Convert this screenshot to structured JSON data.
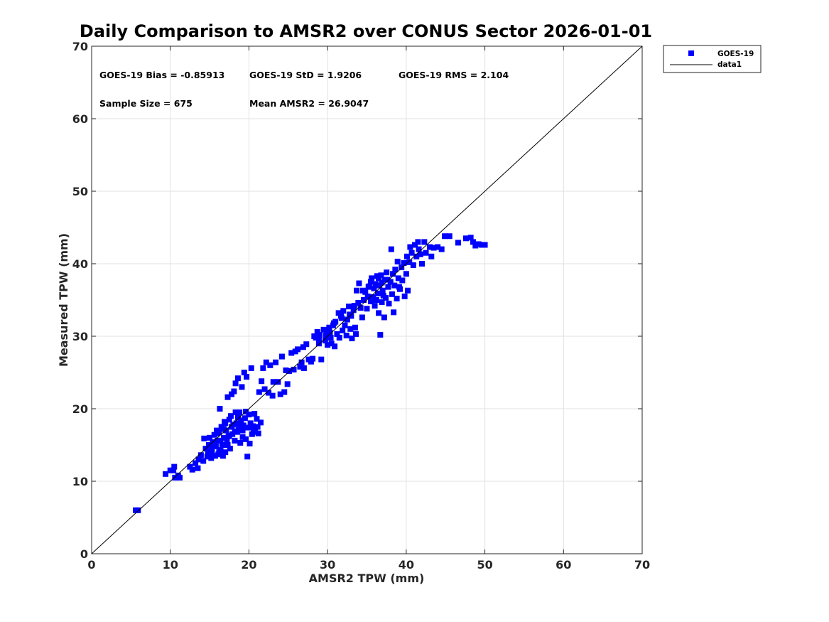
{
  "chart_data": {
    "type": "scatter",
    "title": "Daily Comparison to AMSR2 over CONUS Sector 2026-01-01",
    "xlabel": "AMSR2 TPW (mm)",
    "ylabel": "Measured TPW (mm)",
    "xlim": [
      0,
      70
    ],
    "ylim": [
      0,
      70
    ],
    "xticks": [
      "0",
      "10",
      "20",
      "30",
      "40",
      "50",
      "60",
      "70"
    ],
    "yticks": [
      "0",
      "10",
      "20",
      "30",
      "40",
      "50",
      "60",
      "70"
    ],
    "grid": true,
    "legend_position": "outside-top-right",
    "stats": {
      "bias": "GOES-19 Bias = -0.85913",
      "std": "GOES-19 StD = 1.9206",
      "rms": "GOES-19 RMS = 2.104",
      "sample_size": "Sample Size = 675",
      "mean_amsr2": "Mean AMSR2 = 26.9047"
    },
    "series": [
      {
        "name": "GOES-19",
        "marker": "square",
        "color": "#0000ff",
        "points": [
          [
            5.6,
            6.0
          ],
          [
            5.9,
            6.0
          ],
          [
            9.4,
            11.0
          ],
          [
            10.0,
            11.5
          ],
          [
            10.5,
            12.0
          ],
          [
            10.4,
            11.5
          ],
          [
            10.6,
            10.5
          ],
          [
            11.2,
            10.5
          ],
          [
            11.0,
            10.8
          ],
          [
            12.5,
            12.0
          ],
          [
            12.8,
            11.6
          ],
          [
            13.2,
            12.5
          ],
          [
            13.5,
            11.8
          ],
          [
            13.6,
            13.0
          ],
          [
            13.9,
            13.6
          ],
          [
            14.2,
            12.8
          ],
          [
            14.3,
            15.9
          ],
          [
            14.5,
            14.5
          ],
          [
            14.7,
            13.4
          ],
          [
            14.9,
            15.0
          ],
          [
            15.0,
            16.0
          ],
          [
            15.2,
            13.2
          ],
          [
            15.3,
            14.2
          ],
          [
            15.4,
            15.4
          ],
          [
            15.6,
            16.4
          ],
          [
            15.7,
            13.5
          ],
          [
            15.8,
            14.8
          ],
          [
            15.9,
            17.0
          ],
          [
            16.0,
            15.6
          ],
          [
            16.1,
            13.7
          ],
          [
            16.2,
            16.8
          ],
          [
            16.3,
            20.0
          ],
          [
            16.4,
            14.3
          ],
          [
            16.5,
            17.5
          ],
          [
            16.6,
            15.0
          ],
          [
            16.7,
            13.5
          ],
          [
            16.8,
            16.0
          ],
          [
            16.9,
            18.2
          ],
          [
            17.0,
            14.0
          ],
          [
            17.1,
            17.0
          ],
          [
            17.2,
            15.5
          ],
          [
            17.3,
            21.6
          ],
          [
            17.4,
            16.2
          ],
          [
            17.5,
            18.5
          ],
          [
            17.6,
            14.5
          ],
          [
            17.7,
            19.0
          ],
          [
            17.8,
            22.0
          ],
          [
            17.9,
            16.5
          ],
          [
            18.0,
            17.8
          ],
          [
            18.1,
            22.4
          ],
          [
            18.2,
            15.6
          ],
          [
            18.3,
            23.5
          ],
          [
            18.3,
            19.5
          ],
          [
            18.4,
            18.0
          ],
          [
            18.5,
            16.8
          ],
          [
            18.6,
            24.2
          ],
          [
            18.7,
            17.2
          ],
          [
            18.8,
            19.5
          ],
          [
            18.9,
            15.3
          ],
          [
            19.0,
            18.4
          ],
          [
            19.1,
            23.0
          ],
          [
            19.2,
            16.1
          ],
          [
            19.3,
            17.7
          ],
          [
            19.4,
            25.0
          ],
          [
            19.5,
            18.7
          ],
          [
            19.6,
            15.8
          ],
          [
            19.7,
            24.4
          ],
          [
            19.8,
            13.4
          ],
          [
            19.9,
            17.4
          ],
          [
            20.0,
            19.2
          ],
          [
            20.1,
            15.2
          ],
          [
            20.2,
            18.0
          ],
          [
            20.3,
            25.6
          ],
          [
            20.4,
            16.5
          ],
          [
            20.5,
            17.6
          ],
          [
            20.7,
            19.3
          ],
          [
            20.8,
            16.8
          ],
          [
            21.0,
            18.6
          ],
          [
            21.1,
            17.5
          ],
          [
            21.2,
            16.6
          ],
          [
            21.3,
            22.3
          ],
          [
            21.5,
            18.1
          ],
          [
            21.6,
            23.8
          ],
          [
            21.8,
            25.6
          ],
          [
            22.0,
            22.7
          ],
          [
            22.2,
            26.4
          ],
          [
            22.5,
            22.2
          ],
          [
            22.7,
            26.0
          ],
          [
            23.0,
            21.8
          ],
          [
            23.1,
            23.7
          ],
          [
            23.4,
            26.4
          ],
          [
            23.7,
            23.7
          ],
          [
            24.0,
            22.0
          ],
          [
            24.2,
            27.2
          ],
          [
            24.5,
            22.3
          ],
          [
            24.7,
            25.3
          ],
          [
            24.9,
            23.4
          ],
          [
            25.1,
            25.2
          ],
          [
            25.4,
            27.7
          ],
          [
            25.7,
            25.4
          ],
          [
            25.9,
            27.9
          ],
          [
            26.2,
            28.2
          ],
          [
            26.5,
            25.8
          ],
          [
            26.7,
            26.4
          ],
          [
            26.9,
            28.5
          ],
          [
            27.0,
            25.6
          ],
          [
            27.3,
            28.9
          ],
          [
            27.6,
            26.8
          ],
          [
            27.9,
            26.5
          ],
          [
            28.1,
            26.9
          ],
          [
            28.3,
            30.0
          ],
          [
            28.5,
            29.8
          ],
          [
            28.7,
            30.6
          ],
          [
            28.9,
            29.6
          ],
          [
            29.0,
            30.2
          ],
          [
            29.2,
            26.8
          ],
          [
            29.5,
            30.9
          ],
          [
            29.7,
            29.4
          ],
          [
            29.9,
            30.5
          ],
          [
            30.0,
            28.8
          ],
          [
            30.2,
            31.2
          ],
          [
            30.4,
            29.8
          ],
          [
            30.5,
            29.0
          ],
          [
            30.7,
            31.5
          ],
          [
            30.9,
            28.6
          ],
          [
            31.0,
            32.0
          ],
          [
            31.2,
            30.3
          ],
          [
            31.4,
            33.2
          ],
          [
            31.5,
            29.8
          ],
          [
            31.7,
            32.8
          ],
          [
            31.9,
            30.8
          ],
          [
            32.0,
            33.5
          ],
          [
            32.2,
            31.5
          ],
          [
            32.4,
            30.1
          ],
          [
            32.5,
            32.3
          ],
          [
            32.7,
            34.1
          ],
          [
            32.9,
            31.0
          ],
          [
            33.0,
            32.8
          ],
          [
            33.1,
            29.7
          ],
          [
            33.3,
            33.6
          ],
          [
            33.5,
            31.2
          ],
          [
            33.6,
            30.3
          ],
          [
            33.7,
            36.3
          ],
          [
            33.9,
            34.6
          ],
          [
            34.0,
            37.3
          ],
          [
            34.2,
            33.9
          ],
          [
            34.4,
            32.6
          ],
          [
            34.6,
            35.0
          ],
          [
            34.8,
            36.1
          ],
          [
            35.0,
            33.8
          ],
          [
            35.1,
            35.5
          ],
          [
            35.3,
            36.9
          ],
          [
            35.5,
            34.8
          ],
          [
            35.6,
            38.0
          ],
          [
            35.8,
            35.4
          ],
          [
            35.9,
            36.6
          ],
          [
            36.0,
            34.2
          ],
          [
            36.1,
            37.2
          ],
          [
            36.3,
            38.3
          ],
          [
            36.4,
            35.9
          ],
          [
            36.5,
            33.2
          ],
          [
            36.6,
            37.0
          ],
          [
            36.7,
            30.2
          ],
          [
            36.8,
            38.4
          ],
          [
            36.9,
            34.7
          ],
          [
            37.0,
            36.3
          ],
          [
            37.2,
            32.6
          ],
          [
            37.3,
            37.8
          ],
          [
            37.4,
            35.3
          ],
          [
            37.5,
            38.8
          ],
          [
            37.7,
            36.8
          ],
          [
            37.8,
            34.5
          ],
          [
            38.0,
            37.5
          ],
          [
            38.1,
            42.0
          ],
          [
            38.2,
            35.8
          ],
          [
            38.4,
            33.3
          ],
          [
            38.5,
            37.0
          ],
          [
            38.6,
            39.2
          ],
          [
            38.8,
            35.2
          ],
          [
            38.9,
            40.3
          ],
          [
            39.0,
            38.0
          ],
          [
            39.2,
            36.5
          ],
          [
            39.4,
            39.5
          ],
          [
            39.5,
            37.7
          ],
          [
            39.7,
            40.1
          ],
          [
            39.8,
            35.5
          ],
          [
            40.0,
            38.6
          ],
          [
            40.1,
            41.0
          ],
          [
            40.2,
            36.3
          ],
          [
            40.4,
            40.2
          ],
          [
            40.5,
            42.3
          ],
          [
            40.7,
            41.5
          ],
          [
            40.9,
            39.8
          ],
          [
            41.1,
            42.6
          ],
          [
            41.3,
            41.0
          ],
          [
            41.5,
            43.0
          ],
          [
            41.6,
            42.0
          ],
          [
            41.8,
            41.3
          ],
          [
            42.0,
            40.0
          ],
          [
            42.3,
            43.0
          ],
          [
            42.5,
            41.5
          ],
          [
            43.0,
            42.3
          ],
          [
            43.2,
            41.0
          ],
          [
            43.5,
            42.2
          ],
          [
            44.0,
            42.3
          ],
          [
            44.5,
            42.0
          ],
          [
            44.9,
            43.8
          ],
          [
            45.5,
            43.8
          ],
          [
            46.6,
            42.9
          ],
          [
            47.6,
            43.5
          ],
          [
            48.2,
            43.6
          ],
          [
            48.5,
            43.0
          ],
          [
            48.8,
            42.5
          ],
          [
            49.2,
            42.7
          ],
          [
            49.6,
            42.6
          ],
          [
            50.0,
            42.6
          ],
          [
            17.0,
            18.0
          ],
          [
            16.8,
            17.2
          ],
          [
            17.5,
            16.3
          ],
          [
            18.2,
            16.9
          ],
          [
            18.9,
            17.9
          ],
          [
            17.3,
            15.0
          ],
          [
            16.4,
            15.6
          ],
          [
            15.2,
            14.9
          ],
          [
            14.8,
            14.1
          ],
          [
            15.6,
            15.1
          ],
          [
            16.0,
            16.6
          ],
          [
            17.8,
            17.5
          ],
          [
            18.6,
            18.8
          ],
          [
            19.2,
            17.0
          ],
          [
            19.6,
            19.6
          ],
          [
            20.6,
            17.2
          ],
          [
            16.2,
            14.0
          ],
          [
            15.0,
            13.5
          ],
          [
            34.5,
            36.3
          ],
          [
            35.2,
            36.8
          ],
          [
            36.2,
            35.0
          ],
          [
            36.9,
            37.4
          ],
          [
            37.6,
            37.8
          ],
          [
            38.3,
            38.6
          ],
          [
            39.1,
            36.8
          ],
          [
            35.5,
            37.5
          ],
          [
            36.5,
            38.0
          ],
          [
            37.1,
            35.6
          ],
          [
            31.8,
            32.5
          ],
          [
            32.8,
            33.0
          ],
          [
            33.4,
            34.2
          ],
          [
            30.8,
            31.8
          ],
          [
            29.8,
            30.1
          ],
          [
            28.9,
            29.0
          ],
          [
            30.3,
            30.5
          ]
        ]
      },
      {
        "name": "data1",
        "type": "line",
        "color": "#000000",
        "points": [
          [
            0,
            0
          ],
          [
            70,
            70
          ]
        ]
      }
    ]
  }
}
